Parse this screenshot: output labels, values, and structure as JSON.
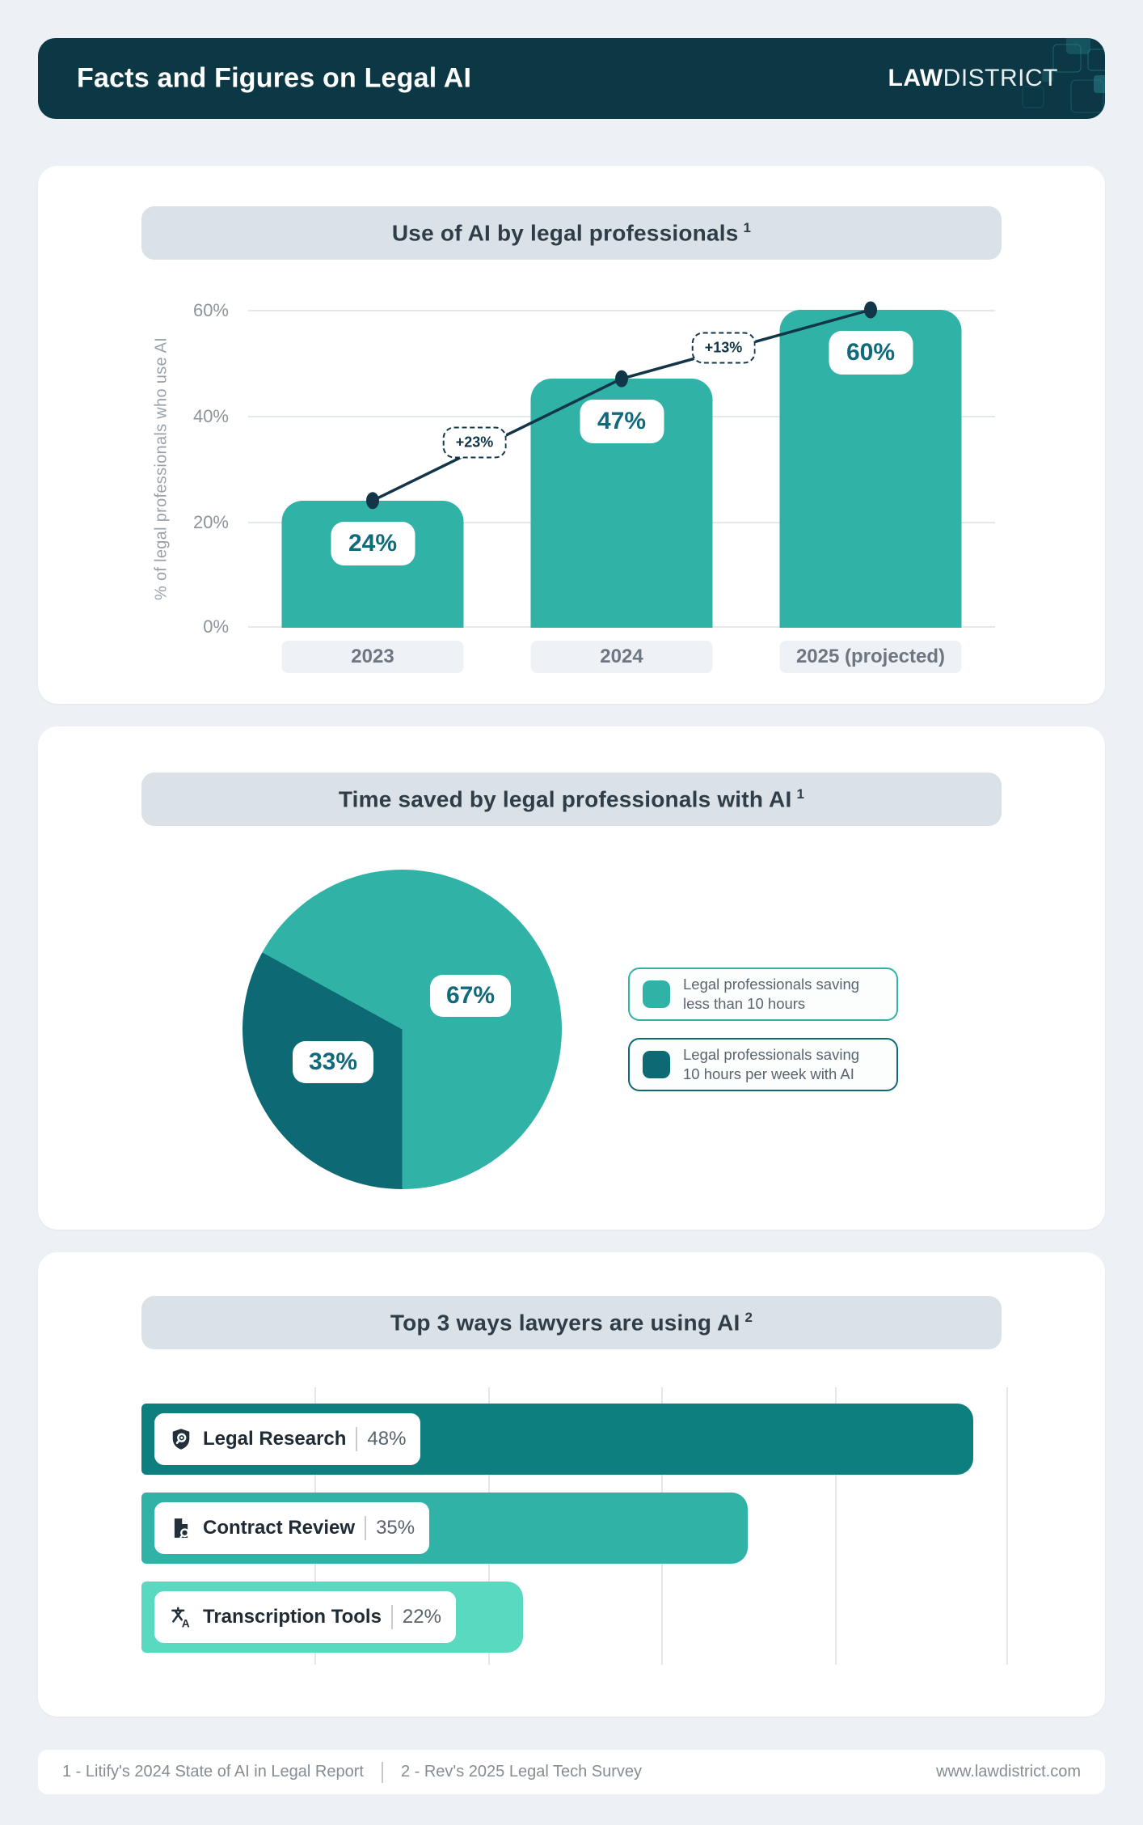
{
  "header": {
    "title": "Facts and Figures on Legal AI",
    "logo_bold": "LAW",
    "logo_light": "DISTRICT"
  },
  "colors": {
    "teal": "#31b2a6",
    "dark_teal": "#0d6974",
    "deep_teal_bar": "#0e7f7f",
    "mint": "#58d9c0",
    "header_navy": "#0c3744",
    "trend_line": "#123647"
  },
  "chart_data": [
    {
      "type": "bar",
      "title": "Use of AI by legal professionals",
      "title_sup": "1",
      "ylabel": "% of legal professionals who use AI",
      "yticks_top_to_bottom": [
        "60%",
        "40%",
        "20%",
        "0%"
      ],
      "ylim": [
        0,
        60
      ],
      "grid": true,
      "categories": [
        "2023",
        "2024",
        "2025 (projected)"
      ],
      "values": [
        24,
        47,
        60
      ],
      "value_labels": [
        "24%",
        "47%",
        "60%"
      ],
      "growth_annotations": [
        "+23%",
        "+13%"
      ],
      "bar_color": "#31b2a6"
    },
    {
      "type": "pie",
      "title": "Time saved by legal professionals with AI",
      "title_sup": "1",
      "start_angle_deg": 180,
      "legend_position": "right",
      "slices": [
        {
          "value": 67,
          "pct_label": "67%",
          "color": "#31b2a6",
          "label": "Legal professionals saving less than 10 hours",
          "label_line1": "Legal professionals saving",
          "label_line2": "less than 10 hours"
        },
        {
          "value": 33,
          "pct_label": "33%",
          "color": "#0d6974",
          "label": "Legal professionals saving 10 hours per week with AI",
          "label_line1": "Legal professionals saving",
          "label_line2": "10 hours per week with AI"
        }
      ]
    },
    {
      "type": "bar",
      "orientation": "horizontal",
      "title": "Top 3 ways lawyers are using AI",
      "title_sup": "2",
      "categories": [
        "Legal Research",
        "Contract Review",
        "Transcription Tools"
      ],
      "values": [
        48,
        35,
        22
      ],
      "value_labels": [
        "48%",
        "35%",
        "22%"
      ],
      "colors": [
        "#0e7f7f",
        "#31b2a6",
        "#58d9c0"
      ],
      "icons": [
        "legal-research-icon",
        "contract-review-icon",
        "transcription-icon"
      ],
      "xlim": [
        0,
        50
      ],
      "grid": true
    }
  ],
  "footer": {
    "source1": "1 - Litify's 2024 State of AI in Legal Report",
    "source2": "2 - Rev's 2025 Legal Tech Survey",
    "website": "www.lawdistrict.com"
  }
}
